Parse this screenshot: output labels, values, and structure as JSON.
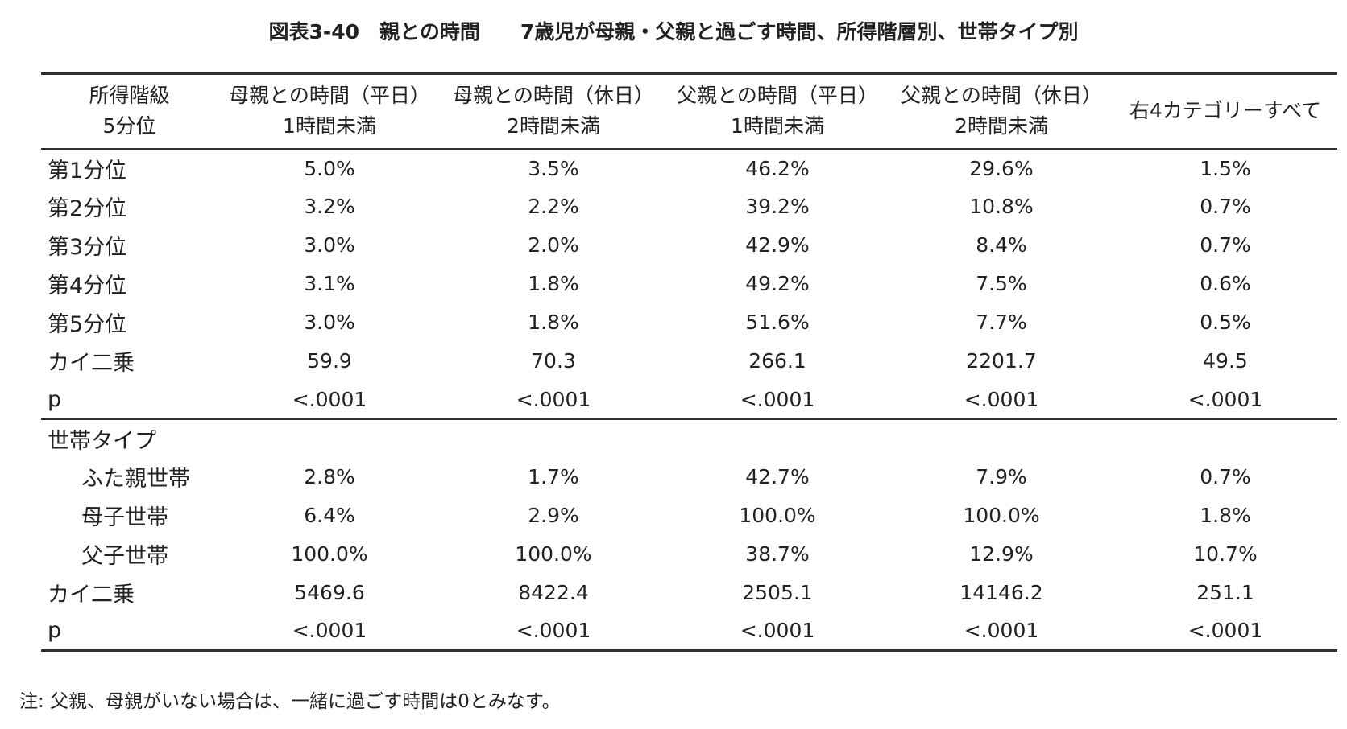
{
  "title": "図表3-40　親との時間　　7歳児が母親・父親と過ごす時間、所得階層別、世帯タイプ別",
  "table": {
    "header": [
      [
        "所得階級",
        "5分位"
      ],
      [
        "母親との時間（平日）",
        "1時間未満"
      ],
      [
        "母親との時間（休日）",
        "2時間未満"
      ],
      [
        "父親との時間（平日）",
        "1時間未満"
      ],
      [
        "父親との時間（休日）",
        "2時間未満"
      ],
      [
        "右4カテゴリーすべて"
      ]
    ],
    "rows": [
      [
        "第1分位",
        "5.0%",
        "3.5%",
        "46.2%",
        "29.6%",
        "1.5%"
      ],
      [
        "第2分位",
        "3.2%",
        "2.2%",
        "39.2%",
        "10.8%",
        "0.7%"
      ],
      [
        "第3分位",
        "3.0%",
        "2.0%",
        "42.9%",
        "8.4%",
        "0.7%"
      ],
      [
        "第4分位",
        "3.1%",
        "1.8%",
        "49.2%",
        "7.5%",
        "0.6%"
      ],
      [
        "第5分位",
        "3.0%",
        "1.8%",
        "51.6%",
        "7.7%",
        "0.5%"
      ],
      [
        "カイ二乗",
        "59.9",
        "70.3",
        "266.1",
        "2201.7",
        "49.5"
      ],
      [
        "p",
        "<.0001",
        "<.0001",
        "<.0001",
        "<.0001",
        "<.0001"
      ],
      [
        "世帯タイプ"
      ],
      [
        "ふた親世帯",
        "2.8%",
        "1.7%",
        "42.7%",
        "7.9%",
        "0.7%"
      ],
      [
        "母子世帯",
        "6.4%",
        "2.9%",
        "100.0%",
        "100.0%",
        "1.8%"
      ],
      [
        "父子世帯",
        "100.0%",
        "100.0%",
        "38.7%",
        "12.9%",
        "10.7%"
      ],
      [
        "カイ二乗",
        "5469.6",
        "8422.4",
        "2505.1",
        "14146.2",
        "251.1"
      ],
      [
        "p",
        "<.0001",
        "<.0001",
        "<.0001",
        "<.0001",
        "<.0001"
      ]
    ]
  },
  "note": "注: 父親、母親がいない場合は、一緒に過ごす時間は0とみなす。"
}
